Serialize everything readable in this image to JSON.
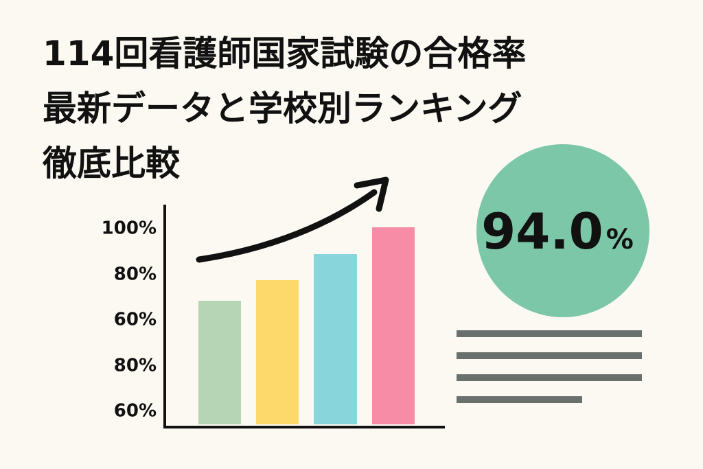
{
  "header": {
    "title_lines": [
      "114回看護師国家試験の合格率",
      "最新データと学校別ランキング",
      "徹底比較"
    ]
  },
  "illustration": {
    "axis_labels": [
      "100%",
      "80%",
      "60%",
      "80%",
      "60%"
    ]
  },
  "badge": {
    "value": "94.0",
    "unit": "%"
  }
}
